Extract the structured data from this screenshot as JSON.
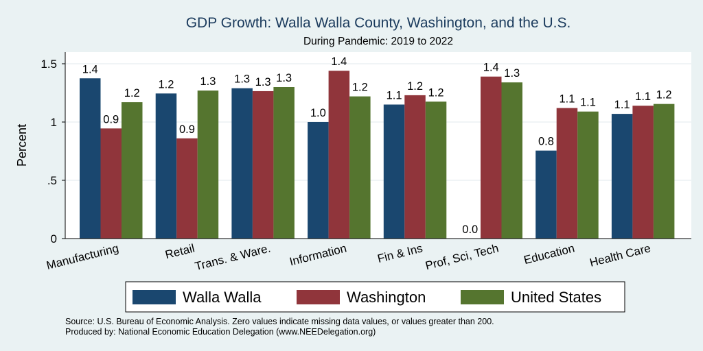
{
  "chart_data": {
    "type": "bar",
    "title": "GDP Growth: Walla Walla County, Washington, and the U.S.",
    "subtitle": "During Pandemic: 2019 to 2022",
    "ylabel": "Percent",
    "xlabel": "",
    "ylim": [
      0,
      1.6
    ],
    "yticks": [
      0,
      0.5,
      1,
      1.5
    ],
    "ytick_labels": [
      "0",
      ".5",
      "1",
      "1.5"
    ],
    "grid": true,
    "legend_position": "bottom",
    "categories": [
      "Manufacturing",
      "Retail",
      "Trans. & Ware.",
      "Information",
      "Fin & Ins",
      "Prof, Sci, Tech",
      "Education",
      "Health Care"
    ],
    "series": [
      {
        "name": "Walla Walla",
        "color": "#1a476f",
        "values": [
          1.375,
          1.245,
          1.29,
          1.0,
          1.15,
          0.0,
          0.755,
          1.07
        ],
        "labels": [
          "1.4",
          "1.2",
          "1.3",
          "1.0",
          "1.1",
          "0.0",
          "0.8",
          "1.1"
        ]
      },
      {
        "name": "Washington",
        "color": "#90353b",
        "values": [
          0.945,
          0.86,
          1.265,
          1.44,
          1.23,
          1.39,
          1.12,
          1.14
        ],
        "labels": [
          "0.9",
          "0.9",
          "1.3",
          "1.4",
          "1.2",
          "1.4",
          "1.1",
          "1.1"
        ]
      },
      {
        "name": "United States",
        "color": "#55752f",
        "values": [
          1.17,
          1.27,
          1.3,
          1.22,
          1.175,
          1.34,
          1.09,
          1.155
        ],
        "labels": [
          "1.2",
          "1.3",
          "1.3",
          "1.2",
          "1.2",
          "1.3",
          "1.1",
          "1.2"
        ]
      }
    ]
  },
  "notes": {
    "source": "Source: U.S. Bureau of Economic Analysis. Zero values indicate missing data values, or values greater than 200.",
    "produced_by": "Produced by: National Economic Education Delegation (www.NEEDelegation.org)"
  }
}
